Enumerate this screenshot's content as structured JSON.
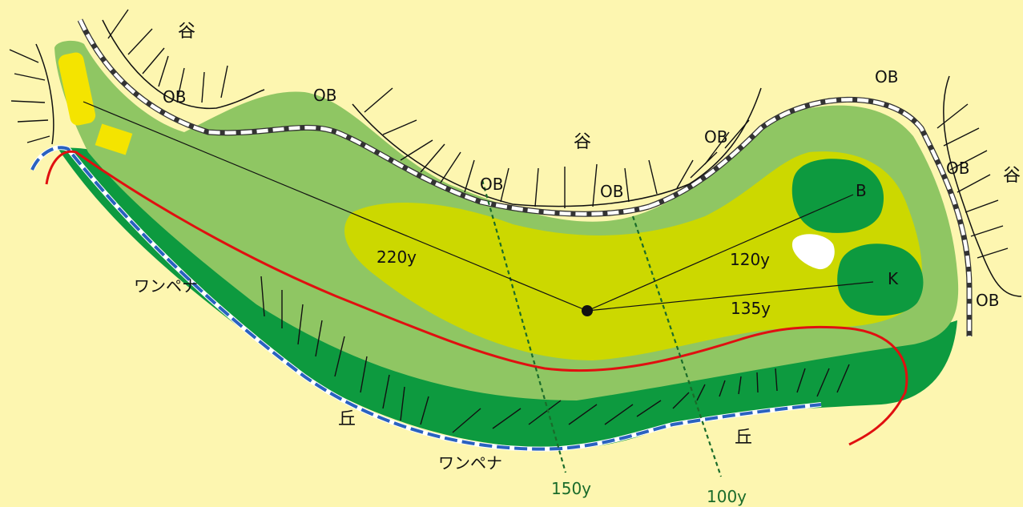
{
  "hole_map": {
    "colors": {
      "background": "#fdf6b0",
      "rough": "#8fc663",
      "fairway": "#ccd800",
      "green": "#0d9a3f",
      "tee": "#f4e400",
      "bunker": "#ffffff",
      "hazard_line": "#e01010",
      "water_line": "#2a62c0",
      "marker_line": "#1a6b2a"
    },
    "labels": {
      "valley_1": "谷",
      "valley_2": "谷",
      "valley_3": "谷",
      "ob_1": "OB",
      "ob_2": "OB",
      "ob_3": "OB",
      "ob_4": "OB",
      "ob_5": "OB",
      "ob_6": "OB",
      "ob_7": "OB",
      "ob_8": "OB",
      "one_penalty_1": "ワンペナ",
      "one_penalty_2": "ワンペナ",
      "hill_1": "丘",
      "hill_2": "丘",
      "green_b": "B",
      "green_k": "K"
    },
    "distances": {
      "tee_shot": "220y",
      "to_green_b": "120y",
      "to_green_k": "135y",
      "marker_150": "150y",
      "marker_100": "100y"
    }
  }
}
